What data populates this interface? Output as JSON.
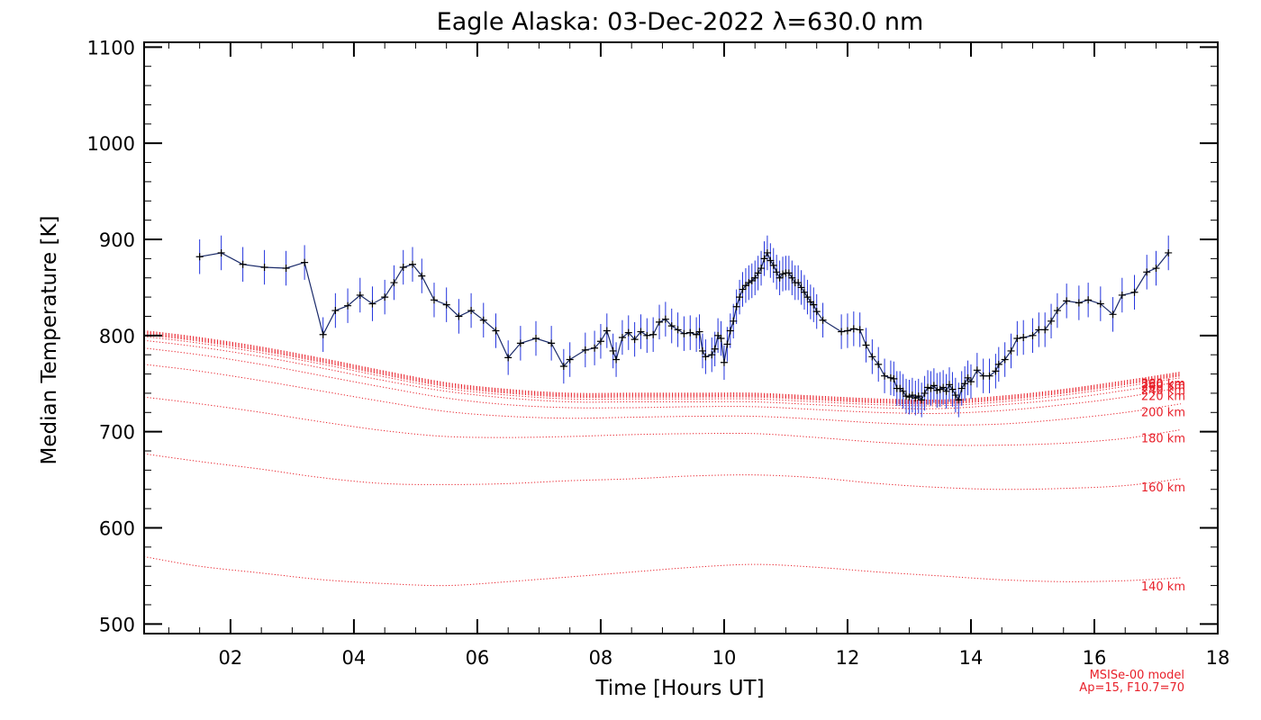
{
  "chart_data": {
    "type": "line",
    "title": "Eagle Alaska: 03-Dec-2022 λ=630.0 nm",
    "xlabel": "Time [Hours UT]",
    "ylabel": "Median Temperature [K]",
    "xlim": [
      0.6,
      18
    ],
    "ylim": [
      490,
      1105
    ],
    "x_ticks": [
      2,
      4,
      6,
      8,
      10,
      12,
      14,
      16,
      18
    ],
    "x_tick_labels": [
      "02",
      "04",
      "06",
      "08",
      "10",
      "12",
      "14",
      "16",
      "18"
    ],
    "y_ticks": [
      500,
      600,
      700,
      800,
      900,
      1000,
      1100
    ],
    "y_tick_labels": [
      "500",
      "600",
      "700",
      "800",
      "900",
      "1000",
      "1100"
    ],
    "grid": false,
    "colors": {
      "measurement_line": "#1a2a6a",
      "error_bars": "#2233dd",
      "markers": "#000000",
      "model": "#e8202a"
    },
    "measurements": {
      "x": [
        1.5,
        1.85,
        2.2,
        2.55,
        2.9,
        3.2,
        3.5,
        3.7,
        3.9,
        4.1,
        4.3,
        4.5,
        4.65,
        4.8,
        4.95,
        5.1,
        5.3,
        5.5,
        5.7,
        5.9,
        6.1,
        6.3,
        6.5,
        6.7,
        6.95,
        7.2,
        7.4,
        7.5,
        7.75,
        7.9,
        8.0,
        8.1,
        8.2,
        8.25,
        8.35,
        8.45,
        8.55,
        8.65,
        8.75,
        8.85,
        8.95,
        9.05,
        9.15,
        9.25,
        9.35,
        9.45,
        9.55,
        9.6,
        9.65,
        9.7,
        9.8,
        9.85,
        9.9,
        9.95,
        10.0,
        10.05,
        10.1,
        10.15,
        10.2,
        10.25,
        10.3,
        10.35,
        10.4,
        10.45,
        10.5,
        10.55,
        10.6,
        10.65,
        10.7,
        10.75,
        10.8,
        10.85,
        10.9,
        10.95,
        11.0,
        11.05,
        11.1,
        11.15,
        11.2,
        11.25,
        11.3,
        11.35,
        11.4,
        11.45,
        11.5,
        11.6,
        11.9,
        12.0,
        12.1,
        12.2,
        12.3,
        12.4,
        12.5,
        12.6,
        12.7,
        12.75,
        12.8,
        12.85,
        12.9,
        12.95,
        13.0,
        13.05,
        13.1,
        13.15,
        13.2,
        13.25,
        13.3,
        13.35,
        13.4,
        13.45,
        13.5,
        13.55,
        13.6,
        13.65,
        13.7,
        13.75,
        13.8,
        13.85,
        13.9,
        13.95,
        14.0,
        14.1,
        14.2,
        14.3,
        14.4,
        14.45,
        14.55,
        14.65,
        14.75,
        14.85,
        15.0,
        15.1,
        15.2,
        15.3,
        15.4,
        15.55,
        15.75,
        15.9,
        16.1,
        16.3,
        16.45,
        16.65,
        16.85,
        17.0,
        17.2
      ],
      "y": [
        882,
        886,
        874,
        871,
        870,
        876,
        801,
        826,
        831,
        842,
        833,
        840,
        855,
        871,
        874,
        862,
        837,
        832,
        820,
        826,
        816,
        805,
        777,
        792,
        797,
        792,
        768,
        775,
        785,
        787,
        794,
        805,
        784,
        775,
        798,
        803,
        796,
        804,
        800,
        801,
        814,
        817,
        810,
        806,
        802,
        803,
        801,
        804,
        784,
        778,
        780,
        786,
        800,
        797,
        772,
        791,
        805,
        815,
        830,
        840,
        848,
        852,
        855,
        857,
        860,
        865,
        870,
        880,
        886,
        878,
        873,
        866,
        860,
        864,
        865,
        865,
        860,
        855,
        855,
        850,
        845,
        840,
        835,
        832,
        825,
        816,
        804,
        805,
        807,
        806,
        790,
        778,
        770,
        758,
        756,
        755,
        745,
        745,
        742,
        737,
        736,
        738,
        735,
        737,
        733,
        740,
        746,
        745,
        748,
        743,
        744,
        746,
        742,
        749,
        744,
        738,
        733,
        745,
        750,
        756,
        752,
        764,
        758,
        758,
        763,
        770,
        775,
        784,
        797,
        798,
        800,
        806,
        806,
        815,
        826,
        836,
        834,
        837,
        833,
        822,
        842,
        845,
        866,
        870,
        886
      ],
      "error_bars": 18
    },
    "model_label": "MSISe-00 model",
    "model_params": "Ap=15, F10.7=70",
    "model_x": [
      0.6,
      1.5,
      2.5,
      3.5,
      4.5,
      5.5,
      6.5,
      7.5,
      8.5,
      9.5,
      10.5,
      11.5,
      12.5,
      13.5,
      14.5,
      15.5,
      16.5,
      17.4
    ],
    "model_series": [
      {
        "name": "140 km",
        "values": [
          570,
          560,
          553,
          546,
          542,
          540,
          544,
          549,
          554,
          559,
          562,
          559,
          554,
          550,
          546,
          544,
          545,
          548
        ]
      },
      {
        "name": "160 km",
        "values": [
          677,
          669,
          661,
          652,
          646,
          645,
          646,
          649,
          651,
          654,
          655,
          652,
          646,
          642,
          640,
          641,
          644,
          651
        ]
      },
      {
        "name": "180 km",
        "values": [
          736,
          729,
          720,
          710,
          701,
          695,
          694,
          695,
          697,
          698,
          698,
          694,
          689,
          686,
          686,
          688,
          693,
          702
        ]
      },
      {
        "name": "200 km",
        "values": [
          770,
          763,
          753,
          742,
          731,
          721,
          716,
          714,
          715,
          716,
          716,
          713,
          709,
          707,
          708,
          713,
          720,
          729
        ]
      },
      {
        "name": "220 km",
        "values": [
          787,
          780,
          770,
          758,
          746,
          735,
          728,
          725,
          725,
          726,
          726,
          723,
          720,
          719,
          722,
          728,
          736,
          746
        ]
      },
      {
        "name": "240 km",
        "values": [
          795,
          788,
          778,
          766,
          753,
          742,
          735,
          731,
          731,
          731,
          731,
          728,
          725,
          724,
          728,
          734,
          743,
          752
        ]
      },
      {
        "name": "260 km",
        "values": [
          799,
          792,
          782,
          770,
          757,
          745,
          738,
          734,
          734,
          734,
          734,
          731,
          728,
          727,
          731,
          738,
          747,
          756
        ]
      },
      {
        "name": "280 km",
        "values": [
          801,
          794,
          784,
          772,
          759,
          747,
          740,
          736,
          736,
          736,
          736,
          733,
          730,
          729,
          733,
          740,
          749,
          758
        ]
      },
      {
        "name": "300 km",
        "values": [
          802,
          795,
          785,
          773,
          760,
          748,
          741,
          737,
          737,
          737,
          737,
          734,
          731,
          730,
          734,
          741,
          750,
          759
        ]
      },
      {
        "name": "",
        "values": [
          803,
          796,
          786,
          774,
          761,
          749,
          742,
          738,
          738,
          738,
          738,
          735,
          732,
          731,
          735,
          742,
          751,
          760
        ]
      },
      {
        "name": "",
        "values": [
          804,
          797,
          787,
          775,
          762,
          750,
          743,
          739,
          739,
          739,
          739,
          736,
          733,
          732,
          736,
          743,
          752,
          761
        ]
      },
      {
        "name": "",
        "values": [
          805,
          798,
          788,
          776,
          763,
          751,
          744,
          740,
          740,
          740,
          740,
          737,
          734,
          733,
          737,
          744,
          753,
          762
        ]
      }
    ]
  }
}
